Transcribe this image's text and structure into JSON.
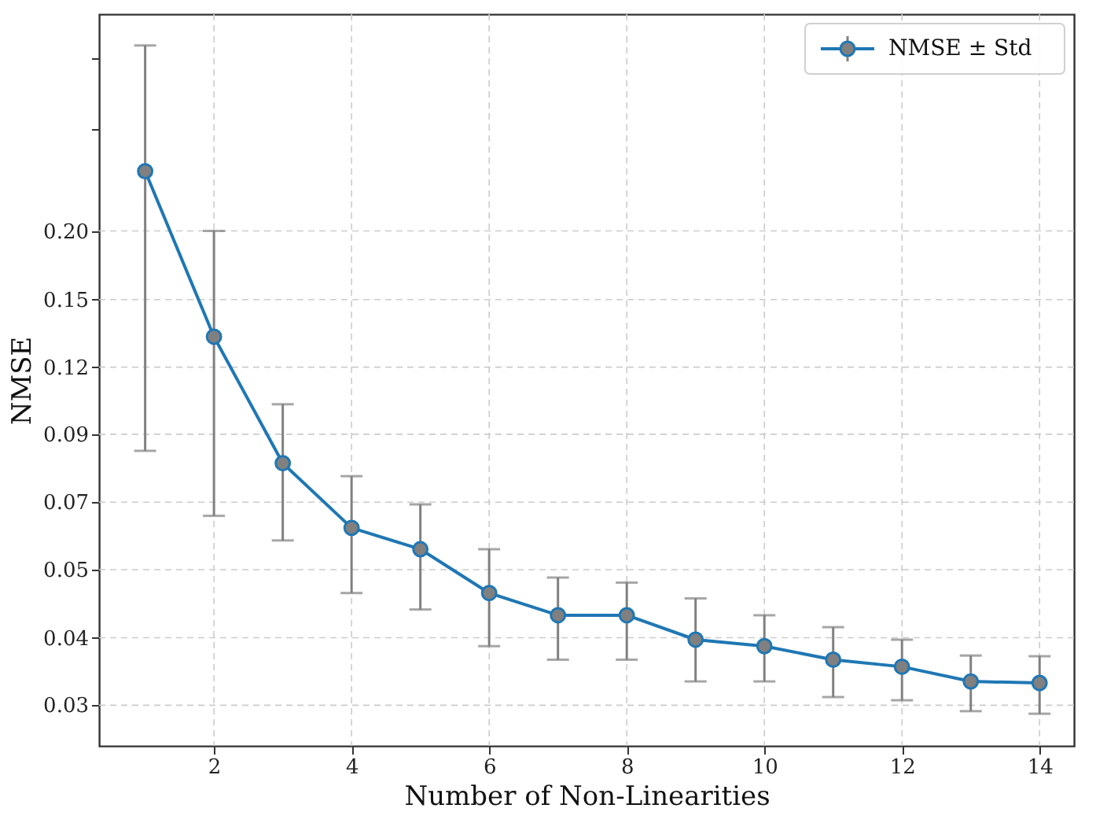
{
  "chart_data": {
    "type": "line",
    "xlabel": "Number of Non-Linearities",
    "ylabel": "NMSE",
    "x": [
      1,
      2,
      3,
      4,
      5,
      6,
      7,
      8,
      9,
      10,
      11,
      12,
      13,
      14
    ],
    "series": [
      {
        "name": "NMSE ± Std",
        "color": "#1f77b4",
        "values": [
          0.254,
          0.131,
          0.079,
          0.061,
          0.056,
          0.047,
          0.043,
          0.043,
          0.039,
          0.038,
          0.036,
          0.035,
          0.033,
          0.0328
        ],
        "errors": [
          [
            0.083,
            0.42
          ],
          [
            0.064,
            0.2
          ],
          [
            0.058,
            0.1
          ],
          [
            0.047,
            0.075
          ],
          [
            0.044,
            0.067
          ],
          [
            0.038,
            0.056
          ],
          [
            0.036,
            0.05
          ],
          [
            0.036,
            0.049
          ],
          [
            0.033,
            0.046
          ],
          [
            0.033,
            0.043
          ],
          [
            0.031,
            0.041
          ],
          [
            0.0306,
            0.039
          ],
          [
            0.0293,
            0.0366
          ],
          [
            0.029,
            0.0365
          ]
        ]
      }
    ],
    "log": "y",
    "xlim": [
      0.33,
      14.5
    ],
    "ylim": [
      0.0255,
      0.476
    ],
    "xticks": [
      2,
      4,
      6,
      8,
      10,
      12,
      14
    ],
    "yticks": [
      {
        "value": 0.03,
        "label": "0.03"
      },
      {
        "value": 0.0393,
        "label": "0.04"
      },
      {
        "value": 0.0516,
        "label": "0.05"
      },
      {
        "value": 0.0676,
        "label": "0.07"
      },
      {
        "value": 0.0887,
        "label": "0.09"
      },
      {
        "value": 0.116,
        "label": "0.12"
      },
      {
        "value": 0.152,
        "label": "0.15"
      },
      {
        "value": 0.2,
        "label": "0.20"
      },
      {
        "value": 0.3,
        "label": null
      },
      {
        "value": 0.4,
        "label": null
      }
    ],
    "grid": true,
    "legend": "top right",
    "marker": "circle",
    "line_style": "solid"
  }
}
